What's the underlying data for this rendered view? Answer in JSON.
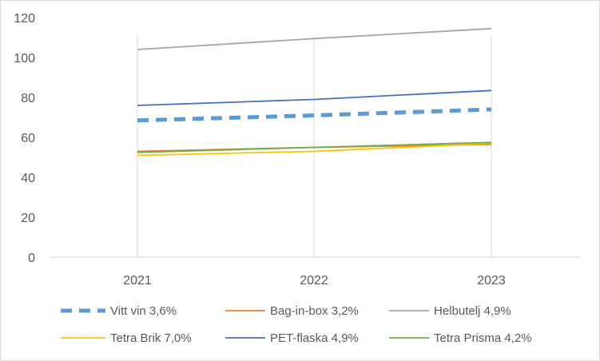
{
  "chart_data": {
    "type": "line",
    "title": "",
    "xlabel": "",
    "ylabel": "",
    "x": [
      "2021",
      "2022",
      "2023"
    ],
    "ylim": [
      0,
      120
    ],
    "yticks": [
      0,
      20,
      40,
      60,
      80,
      100,
      120
    ],
    "grid": "vertical",
    "legend_position": "bottom",
    "series": [
      {
        "name": "Vitt vin 3,6%",
        "values": [
          68.5,
          71,
          74
        ],
        "color": "#5b9bd5",
        "style": "dashed"
      },
      {
        "name": "Bag-in-box 3,2%",
        "values": [
          53,
          55,
          56.5
        ],
        "color": "#ed7d31",
        "style": "solid"
      },
      {
        "name": "Helbutelj 4,9%",
        "values": [
          104,
          109.5,
          114.5
        ],
        "color": "#a5a5a5",
        "style": "solid"
      },
      {
        "name": "Tetra Brik 7,0%",
        "values": [
          51,
          53,
          57
        ],
        "color": "#ffc000",
        "style": "solid"
      },
      {
        "name": "PET-flaska 4,9%",
        "values": [
          76,
          79,
          83.5
        ],
        "color": "#4472c4",
        "style": "solid"
      },
      {
        "name": "Tetra Prisma 4,2%",
        "values": [
          52.5,
          55,
          57.5
        ],
        "color": "#70ad47",
        "style": "solid"
      }
    ]
  }
}
